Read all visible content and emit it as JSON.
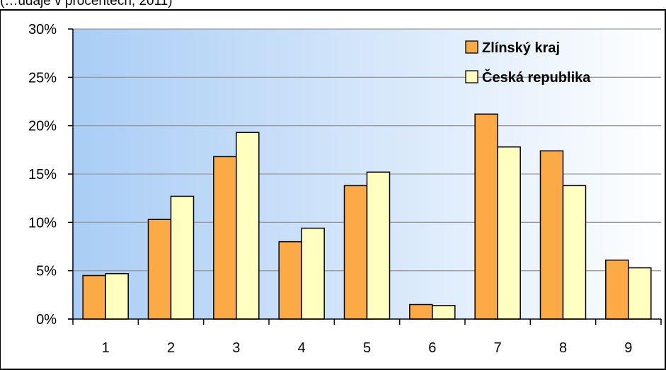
{
  "top_caption": "(…údaje v procentech, 2011)",
  "colors": {
    "zlinsky": "#FBAA46",
    "cr": "#FFFFC0",
    "bg_left": "#A9CDF5",
    "bg_right": "#FFFFFF",
    "grid": "#9A9A9A"
  },
  "chart_data": {
    "type": "bar",
    "categories": [
      "1",
      "2",
      "3",
      "4",
      "5",
      "6",
      "7",
      "8",
      "9"
    ],
    "series": [
      {
        "name": "Zlínský kraj",
        "values": [
          4.5,
          10.3,
          16.8,
          8.0,
          13.8,
          1.5,
          21.2,
          17.4,
          6.1
        ]
      },
      {
        "name": "Česká republika",
        "values": [
          4.7,
          12.7,
          19.3,
          9.4,
          15.2,
          1.4,
          17.8,
          13.8,
          5.3
        ]
      }
    ],
    "y_ticks": [
      "0%",
      "5%",
      "10%",
      "15%",
      "20%",
      "25%",
      "30%"
    ],
    "ylim": [
      0,
      30
    ],
    "grid": true,
    "legend": "top-right"
  }
}
